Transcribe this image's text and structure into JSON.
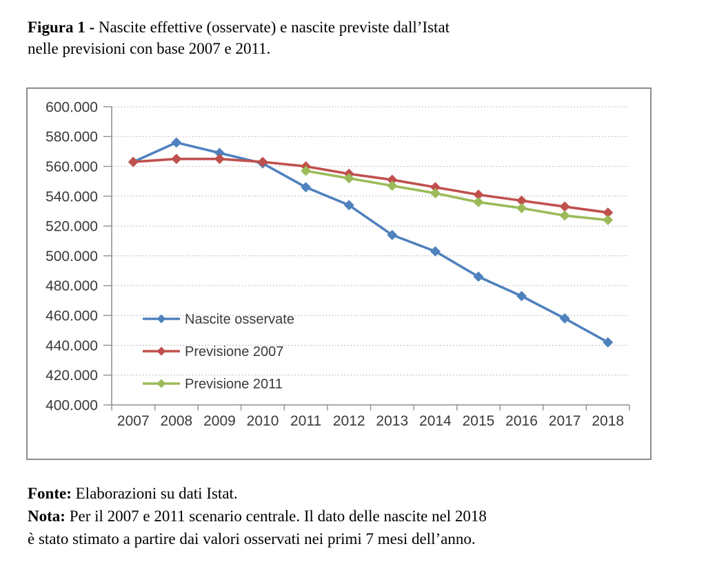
{
  "title": {
    "bold": "Figura 1 -",
    "line1_rest": " Nascite effettive (osservate) e nascite previste dall’Istat",
    "line2": "nelle previsioni con base 2007 e 2011."
  },
  "footer": {
    "fonte_label": "Fonte:",
    "fonte_text": " Elaborazioni su dati Istat.",
    "nota_label": "Nota:",
    "nota_text": " Per il 2007 e 2011 scenario centrale. Il dato delle nascite nel 2018",
    "nota_text2": "è stato stimato a partire dai valori osservati nei primi 7 mesi dell’anno."
  },
  "chart_data": {
    "type": "line",
    "categories": [
      "2007",
      "2008",
      "2009",
      "2010",
      "2011",
      "2012",
      "2013",
      "2014",
      "2015",
      "2016",
      "2017",
      "2018"
    ],
    "series": [
      {
        "name": "Nascite osservate",
        "color": "#4f81bd",
        "values": [
          563000,
          576000,
          569000,
          562000,
          546000,
          534000,
          514000,
          503000,
          486000,
          473000,
          458000,
          442000
        ]
      },
      {
        "name": "Previsione 2007",
        "color": "#c0504d",
        "values": [
          563000,
          565000,
          565000,
          563000,
          560000,
          555000,
          551000,
          546000,
          541000,
          537000,
          533000,
          529000
        ]
      },
      {
        "name": "Previsione 2011",
        "color": "#9bbb59",
        "values": [
          null,
          null,
          null,
          null,
          557000,
          552000,
          547000,
          542000,
          536000,
          532000,
          527000,
          524000
        ]
      }
    ],
    "ylim": [
      400000,
      600000
    ],
    "y_step": 20000,
    "y_tick_labels": [
      "400.000",
      "420.000",
      "440.000",
      "460.000",
      "480.000",
      "500.000",
      "520.000",
      "540.000",
      "560.000",
      "580.000",
      "600.000"
    ],
    "xlabel": "",
    "ylabel": "",
    "grid": "horizontal-dotted",
    "legend_position": "inside-left",
    "marker": "diamond",
    "colors": {
      "axis": "#8f8f8f",
      "gridline": "#a8a8a8",
      "tick_label": "#3a3a3a",
      "frame_border": "#8c8c8c"
    }
  }
}
